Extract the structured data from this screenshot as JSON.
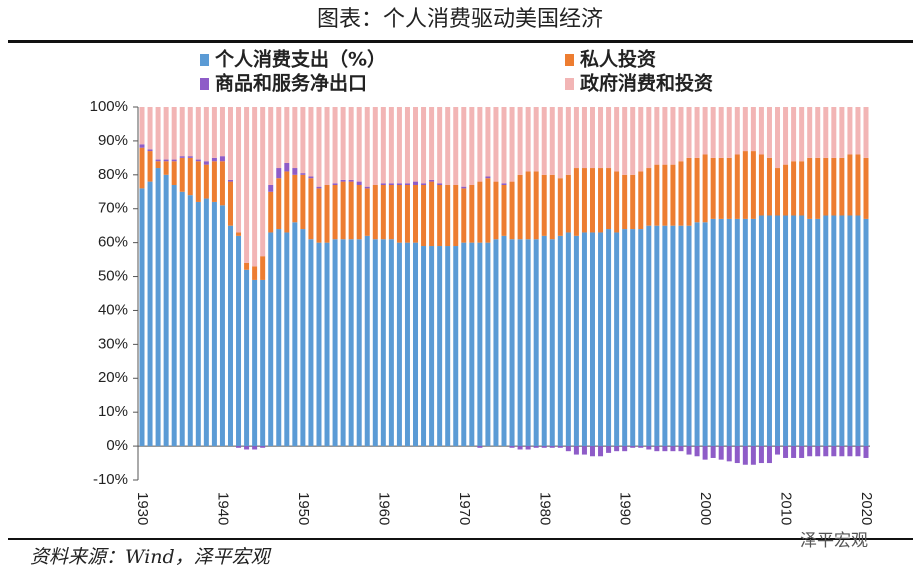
{
  "chart_data": {
    "type": "stacked_bar",
    "title": "图表：个人消费驱动美国经济",
    "source": "资料来源：Wind，泽平宏观",
    "watermark": "泽平宏观",
    "categories": [
      "1930",
      null,
      null,
      null,
      null,
      null,
      null,
      null,
      null,
      null,
      "1940",
      null,
      null,
      null,
      null,
      null,
      null,
      null,
      null,
      null,
      "1950",
      null,
      null,
      null,
      null,
      null,
      null,
      null,
      null,
      null,
      "1960",
      null,
      null,
      null,
      null,
      null,
      null,
      null,
      null,
      null,
      "1970",
      null,
      null,
      null,
      null,
      null,
      null,
      null,
      null,
      null,
      "1980",
      null,
      null,
      null,
      null,
      null,
      null,
      null,
      null,
      null,
      "1990",
      null,
      null,
      null,
      null,
      null,
      null,
      null,
      null,
      null,
      "2000",
      null,
      null,
      null,
      null,
      null,
      null,
      null,
      null,
      null,
      "2010",
      null,
      null,
      null,
      null,
      null,
      null,
      null,
      null,
      null,
      "2020"
    ],
    "series": [
      {
        "name": "个人消费支出（%）",
        "color": "#5b9bd5",
        "values": [
          76,
          78,
          82,
          80,
          77,
          75,
          74,
          72,
          73,
          72,
          71,
          65,
          62,
          52,
          49,
          49,
          63,
          64,
          63,
          66,
          64,
          61,
          60,
          60,
          61,
          61,
          61,
          61,
          62,
          61,
          61,
          61,
          60,
          60,
          60,
          59,
          59,
          59,
          59,
          59,
          60,
          60,
          60,
          60,
          61,
          62,
          61,
          61,
          61,
          61,
          62,
          61,
          62,
          63,
          62,
          63,
          63,
          63,
          64,
          63,
          64,
          64,
          64,
          65,
          65,
          65,
          65,
          65,
          65,
          66,
          66,
          67,
          67,
          67,
          67,
          67,
          67,
          68,
          68,
          68,
          68,
          68,
          68,
          67,
          67,
          68,
          68,
          68,
          68,
          68,
          67
        ]
      },
      {
        "name": "私人投资",
        "color": "#ed7d31",
        "values": [
          12,
          9,
          2,
          4,
          7,
          10,
          11,
          12,
          10,
          12,
          13,
          13,
          1,
          2,
          4,
          7,
          12,
          15,
          18,
          14,
          16,
          18,
          16,
          17,
          16,
          17,
          17,
          16,
          14,
          16,
          16,
          16,
          17,
          17,
          17,
          18,
          19,
          18,
          18,
          18,
          16,
          17,
          18,
          19,
          17,
          15,
          17,
          19,
          20,
          20,
          18,
          19,
          17,
          17,
          20,
          19,
          19,
          19,
          18,
          18,
          16,
          16,
          17,
          17,
          18,
          18,
          18,
          19,
          20,
          19,
          20,
          18,
          18,
          18,
          19,
          20,
          20,
          18,
          17,
          14,
          15,
          16,
          16,
          18,
          18,
          17,
          17,
          17,
          18,
          18,
          18
        ]
      },
      {
        "name": "商品和服务净出口",
        "color": "#8e5cc8",
        "values": [
          1,
          0.5,
          0.5,
          0.5,
          0.5,
          0.5,
          0.5,
          0.5,
          1,
          1,
          1.5,
          0.5,
          -0.5,
          -1,
          -1,
          -0.5,
          2,
          3,
          2.5,
          2,
          0.5,
          0.5,
          0.5,
          0,
          0.5,
          0.5,
          0.5,
          1,
          0.5,
          0,
          0.5,
          0.5,
          0.5,
          0.5,
          1,
          0.5,
          0.5,
          0.5,
          0,
          0,
          0.5,
          0,
          -0.5,
          0.5,
          0,
          0.5,
          -0.5,
          -1,
          -1,
          -0.5,
          -0.5,
          -0.5,
          -0.5,
          -1.5,
          -2.5,
          -2.5,
          -3,
          -3,
          -2,
          -1.5,
          -1.5,
          -0.5,
          -0.5,
          -1,
          -1.5,
          -1.5,
          -1.5,
          -1.5,
          -2.5,
          -3,
          -4,
          -3.5,
          -4,
          -4.5,
          -5,
          -5.5,
          -5.5,
          -5,
          -5,
          -2.5,
          -3.5,
          -3.5,
          -3.5,
          -3,
          -3,
          -3,
          -3,
          -3,
          -3,
          -3,
          -3.5
        ]
      },
      {
        "name": "政府消费和投资",
        "color": "#f2b5b5",
        "values": [
          11,
          12.5,
          15.5,
          15.5,
          15.5,
          14.5,
          14.5,
          15.5,
          16,
          15,
          14.5,
          21.5,
          37,
          46,
          47,
          44,
          23,
          18,
          16.5,
          18,
          19.5,
          20.5,
          23.5,
          23,
          22.5,
          21.5,
          21.5,
          22,
          23.5,
          23,
          22.5,
          22.5,
          22.5,
          22.5,
          22,
          22.5,
          21.5,
          22.5,
          23,
          23,
          23.5,
          23,
          22,
          20.5,
          22,
          22.5,
          22,
          20,
          19,
          19,
          20,
          20,
          21,
          20,
          18,
          18,
          18,
          18,
          18,
          19,
          20,
          20,
          19,
          18,
          17,
          17,
          17,
          16,
          15,
          15,
          14,
          15,
          15,
          15,
          14,
          13,
          13,
          14,
          15,
          18,
          17,
          16,
          16,
          15,
          15,
          15,
          15,
          15,
          14,
          14,
          15
        ]
      }
    ],
    "ylim": [
      -10,
      100
    ],
    "yticks": [
      {
        "value": -10,
        "label": "-10%"
      },
      {
        "value": 0,
        "label": "0%"
      },
      {
        "value": 10,
        "label": "10%"
      },
      {
        "value": 20,
        "label": "20%"
      },
      {
        "value": 30,
        "label": "30%"
      },
      {
        "value": 40,
        "label": "40%"
      },
      {
        "value": 50,
        "label": "50%"
      },
      {
        "value": 60,
        "label": "60%"
      },
      {
        "value": 70,
        "label": "70%"
      },
      {
        "value": 80,
        "label": "80%"
      },
      {
        "value": 90,
        "label": "90%"
      },
      {
        "value": 100,
        "label": "100%"
      }
    ]
  }
}
